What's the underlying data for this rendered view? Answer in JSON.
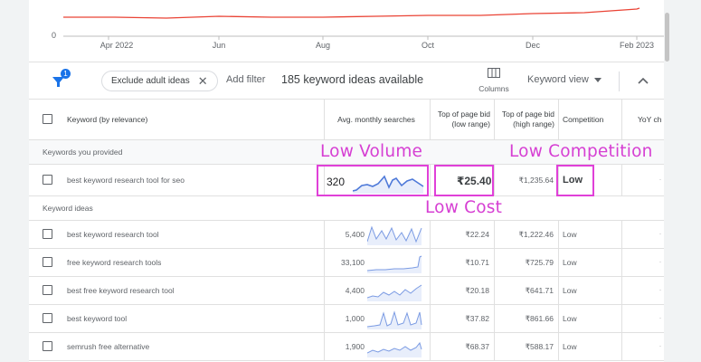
{
  "trend_chart": {
    "zero_label": "0",
    "months": [
      "Apr 2022",
      "Jun",
      "Aug",
      "Oct",
      "Dec",
      "Feb 2023"
    ],
    "line_color": "#ea4335"
  },
  "toolbar": {
    "filter_badge": "1",
    "chip_label": "Exclude adult ideas",
    "chip_close": "✕",
    "add_filter": "Add filter",
    "ideas_count": "185 keyword ideas available",
    "columns_label": "Columns",
    "keyword_view": "Keyword view"
  },
  "table": {
    "headers": {
      "keyword": "Keyword (by relevance)",
      "avg": "Avg. monthly searches",
      "bid_low": "Top of page bid (low range)",
      "bid_high": "Top of page bid (high range)",
      "competition": "Competition",
      "yoy": "YoY ch"
    },
    "section_provided": "Keywords you provided",
    "section_ideas": "Keyword ideas",
    "provided_row": {
      "keyword": "best keyword research tool for seo",
      "avg": "320",
      "bid_low": "₹25.40",
      "bid_high": "₹1,235.64",
      "competition": "Low"
    },
    "idea_rows": [
      {
        "keyword": "best keyword research tool",
        "avg": "5,400",
        "bid_low": "₹22.24",
        "bid_high": "₹1,222.46",
        "competition": "Low"
      },
      {
        "keyword": "free keyword research tools",
        "avg": "33,100",
        "bid_low": "₹10.71",
        "bid_high": "₹725.79",
        "competition": "Low"
      },
      {
        "keyword": "best free keyword research tool",
        "avg": "4,400",
        "bid_low": "₹20.18",
        "bid_high": "₹641.71",
        "competition": "Low"
      },
      {
        "keyword": "best keyword tool",
        "avg": "1,000",
        "bid_low": "₹37.82",
        "bid_high": "₹861.66",
        "competition": "Low"
      },
      {
        "keyword": "semrush free alternative",
        "avg": "1,900",
        "bid_low": "₹68.37",
        "bid_high": "₹588.17",
        "competition": "Low"
      }
    ]
  },
  "annotations": {
    "low_volume": "Low Volume",
    "low_cost": "Low Cost",
    "low_competition": "Low Competition",
    "color": "#e040d8"
  }
}
